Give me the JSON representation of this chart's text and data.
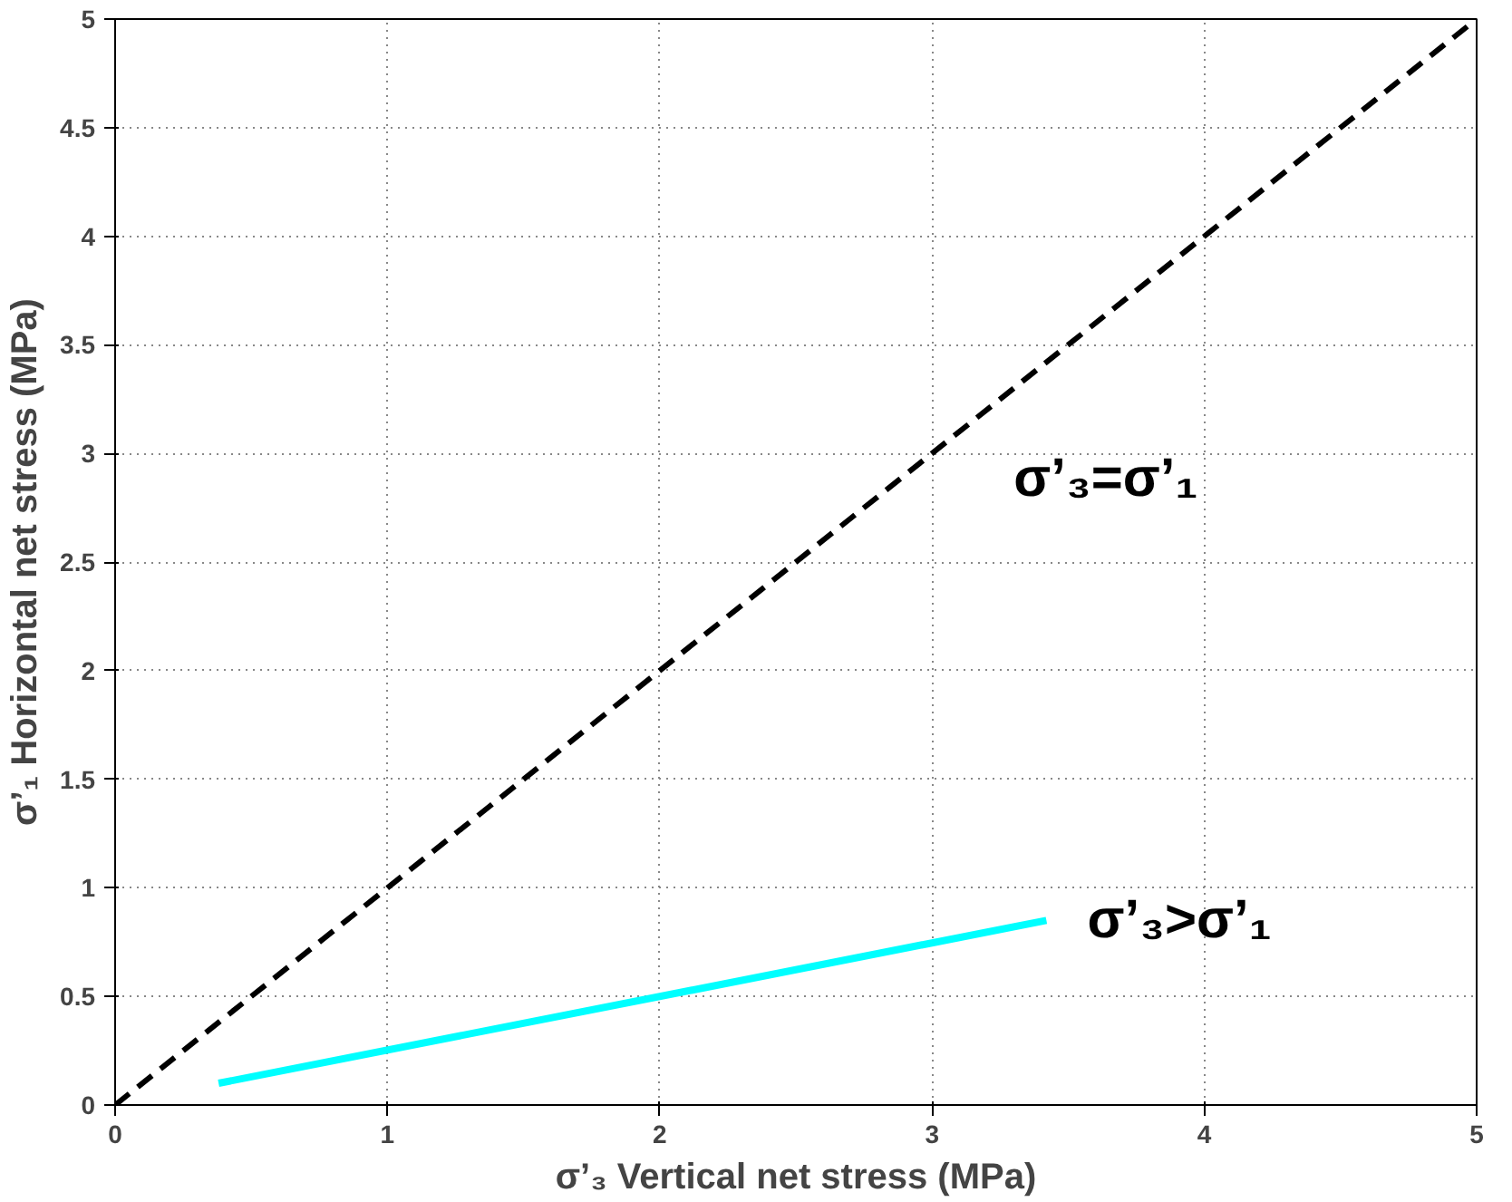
{
  "chart_data": {
    "type": "line",
    "xlabel": "σ’₃ Vertical net stress (MPa)",
    "ylabel": "σ’₁ Horizontal net stress (MPa)",
    "xlim": [
      0,
      5
    ],
    "ylim": [
      0,
      5
    ],
    "xticks": [
      0,
      1,
      2,
      3,
      4,
      5
    ],
    "yticks": [
      0,
      0.5,
      1,
      1.5,
      2,
      2.5,
      3,
      3.5,
      4,
      4.5,
      5
    ],
    "grid": true,
    "series": [
      {
        "name": "σ’₃=σ’₁",
        "color": "#000000",
        "line_style": "dashed",
        "x": [
          0,
          5
        ],
        "values": [
          0,
          5
        ]
      },
      {
        "name": "σ’₃>σ’₁",
        "color": "#00ffff",
        "line_style": "solid",
        "x": [
          0.38,
          3.42
        ],
        "values": [
          0.1,
          0.85
        ]
      }
    ]
  }
}
